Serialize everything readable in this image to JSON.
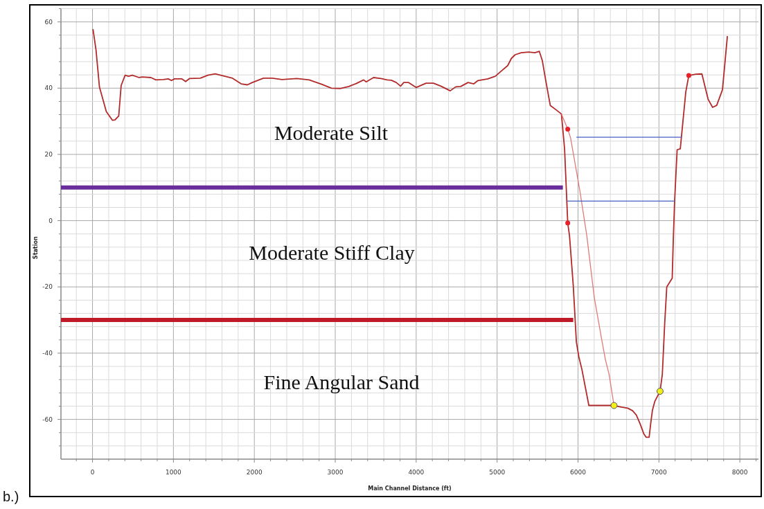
{
  "chart_data": {
    "type": "line",
    "xlabel": "Main Channel Distance (ft)",
    "ylabel": "Station",
    "annotations": [
      "Moderate Silt",
      "Moderate Stiff Clay",
      "Fine Angular Sand",
      "b.)"
    ],
    "xlim": [
      -390,
      8230
    ],
    "ylim": [
      -72,
      64
    ],
    "xticks": [
      {
        "value": -200,
        "label": null
      },
      0,
      {
        "value": 200,
        "label": null
      },
      {
        "value": 400,
        "label": null
      },
      {
        "value": 600,
        "label": null
      },
      {
        "value": 800,
        "label": null
      },
      1000,
      {
        "value": 1200,
        "label": null
      },
      {
        "value": 1400,
        "label": null
      },
      {
        "value": 1600,
        "label": null
      },
      {
        "value": 1800,
        "label": null
      },
      2000,
      {
        "value": 2200,
        "label": null
      },
      {
        "value": 2400,
        "label": null
      },
      {
        "value": 2600,
        "label": null
      },
      {
        "value": 2800,
        "label": null
      },
      3000,
      {
        "value": 3200,
        "label": null
      },
      {
        "value": 3400,
        "label": null
      },
      {
        "value": 3600,
        "label": null
      },
      {
        "value": 3800,
        "label": null
      },
      4000,
      {
        "value": 4200,
        "label": null
      },
      {
        "value": 4400,
        "label": null
      },
      {
        "value": 4600,
        "label": null
      },
      {
        "value": 4800,
        "label": null
      },
      5000,
      {
        "value": 5200,
        "label": null
      },
      {
        "value": 5400,
        "label": null
      },
      {
        "value": 5600,
        "label": null
      },
      {
        "value": 5800,
        "label": null
      },
      6000,
      {
        "value": 6200,
        "label": null
      },
      {
        "value": 6400,
        "label": null
      },
      {
        "value": 6600,
        "label": null
      },
      {
        "value": 6800,
        "label": null
      },
      7000,
      {
        "value": 7200,
        "label": null
      },
      {
        "value": 7400,
        "label": null
      },
      {
        "value": 7600,
        "label": null
      },
      {
        "value": 7800,
        "label": null
      },
      8000,
      {
        "value": 8200,
        "label": null
      }
    ],
    "yticks": [
      {
        "value": -68,
        "label": null
      },
      {
        "value": -64,
        "label": null
      },
      -60,
      {
        "value": -56,
        "label": null
      },
      {
        "value": -52,
        "label": null
      },
      {
        "value": -48,
        "label": null
      },
      {
        "value": -44,
        "label": null
      },
      -40,
      {
        "value": -36,
        "label": null
      },
      {
        "value": -32,
        "label": null
      },
      {
        "value": -28,
        "label": null
      },
      {
        "value": -24,
        "label": null
      },
      -20,
      {
        "value": -16,
        "label": null
      },
      {
        "value": -12,
        "label": null
      },
      {
        "value": -8,
        "label": null
      },
      {
        "value": -4,
        "label": null
      },
      0,
      {
        "value": 4,
        "label": null
      },
      {
        "value": 8,
        "label": null
      },
      {
        "value": 12,
        "label": null
      },
      {
        "value": 16,
        "label": null
      },
      20,
      {
        "value": 24,
        "label": null
      },
      {
        "value": 28,
        "label": null
      },
      {
        "value": 32,
        "label": null
      },
      {
        "value": 36,
        "label": null
      },
      40,
      {
        "value": 44,
        "label": null
      },
      {
        "value": 48,
        "label": null
      },
      {
        "value": 52,
        "label": null
      },
      {
        "value": 56,
        "label": null
      },
      60,
      {
        "value": 64,
        "label": null
      }
    ],
    "grid": true,
    "line_style": "solid",
    "series": [
      {
        "color": "#b22a2a",
        "x": [
          6,
          43,
          86,
          171,
          247,
          278,
          324,
          354,
          403,
          446,
          492,
          577,
          614,
          722,
          783,
          875,
          936,
          976,
          1013,
          1105,
          1151,
          1197,
          1333,
          1425,
          1516,
          1730,
          1837,
          1914,
          1975,
          2113,
          2220,
          2342,
          2525,
          2678,
          2831,
          2954,
          3060,
          3168,
          3259,
          3351,
          3382,
          3473,
          3565,
          3641,
          3693,
          3754,
          3807,
          3847,
          3907,
          3999,
          4122,
          4213,
          4305,
          4421,
          4489,
          4550,
          4641,
          4712,
          4764,
          4886,
          4978,
          5039,
          5131,
          5177,
          5223,
          5299,
          5391,
          5466,
          5522,
          5559,
          5604,
          5657,
          5727,
          5795,
          5834,
          5873,
          5895,
          5941,
          5980,
          6011,
          6048,
          6134,
          6445,
          6537,
          6614,
          6675,
          6721,
          6767,
          6812,
          6843,
          6879,
          6898,
          6920,
          6950,
          7014,
          7042,
          7072,
          7097,
          7164,
          7179,
          7194,
          7225,
          7264,
          7332,
          7369,
          7455,
          7531,
          7607,
          7663,
          7714,
          7785,
          7846
        ],
        "values": [
          57.8,
          51.6,
          40.3,
          32.9,
          30.3,
          30.4,
          31.6,
          40.8,
          43.9,
          43.6,
          43.9,
          43.2,
          43.4,
          43.2,
          42.5,
          42.6,
          42.8,
          42.3,
          42.8,
          42.8,
          42,
          42.9,
          43,
          43.9,
          44.3,
          43,
          41.3,
          41,
          41.7,
          43,
          43,
          42.6,
          42.9,
          42.5,
          41.2,
          40,
          39.9,
          40.5,
          41.4,
          42.5,
          41.9,
          43.2,
          42.9,
          42.5,
          42.4,
          41.7,
          40.6,
          41.7,
          41.7,
          40.2,
          41.5,
          41.5,
          40.6,
          39.2,
          40.4,
          40.5,
          41.7,
          41.3,
          42.3,
          42.8,
          43.6,
          44.9,
          46.8,
          49,
          50.1,
          50.7,
          50.9,
          50.7,
          51.1,
          48.3,
          41.9,
          34.8,
          33.5,
          32.2,
          21.7,
          -0.7,
          -4.6,
          -19.5,
          -36.7,
          -41.2,
          -44.9,
          -55.8,
          -55.8,
          -56.3,
          -56.6,
          -57.4,
          -58.7,
          -61.3,
          -64.3,
          -65.4,
          -65.4,
          -61.3,
          -57.2,
          -54.5,
          -51.5,
          -46.4,
          -30.7,
          -20,
          -17.4,
          -4.6,
          6,
          21.4,
          21.7,
          38.9,
          43.8,
          44.2,
          44.3,
          36.7,
          34.2,
          34.8,
          39.5,
          55.7
        ]
      },
      {
        "color": "#e07a7a",
        "x": [
          5795,
          5873,
          5908,
          6023,
          6109,
          6201,
          6293,
          6338,
          6384,
          6445
        ],
        "values": [
          32.2,
          27.6,
          25,
          9,
          -4.6,
          -23.2,
          -35.9,
          -41.9,
          -46.4,
          -55.8
        ]
      },
      {
        "color": "#4a5ec4",
        "x": [
          5980,
          7280
        ],
        "values": [
          25.2,
          25.2
        ]
      },
      {
        "color": "#4a5ec4",
        "x": [
          5865,
          7194
        ],
        "values": [
          5.9,
          5.9
        ]
      },
      {
        "color": "#6a2e9c",
        "x": [
          -390,
          5813
        ],
        "values": [
          10,
          10
        ]
      },
      {
        "color": "#c01a28",
        "x": [
          -390,
          5941
        ],
        "values": [
          -30,
          -30
        ]
      },
      {
        "type": "scatter",
        "marker": "circle",
        "color": "#e8202a",
        "x": [
          5873,
          5873,
          7369
        ],
        "values": [
          27.6,
          -0.7,
          43.8
        ]
      },
      {
        "type": "scatter",
        "marker": "circle",
        "color": "#f2ee1c",
        "x": [
          6445,
          7014
        ],
        "values": [
          -55.8,
          -51.5
        ]
      }
    ]
  }
}
